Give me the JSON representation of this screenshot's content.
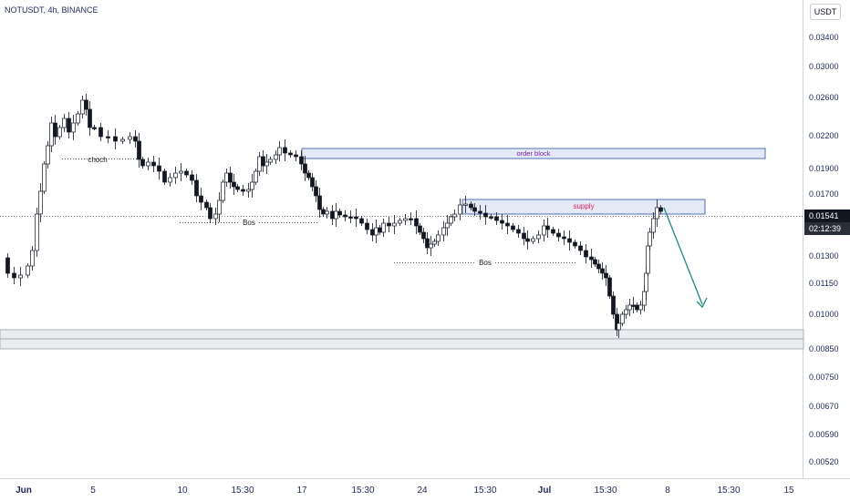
{
  "symbol": {
    "title": "NOTUSDT, 4h, BINANCE"
  },
  "currency": "USDT",
  "current_price": {
    "price": "0.01541",
    "countdown": "02:12:39"
  },
  "y_axis": {
    "ticks": [
      "0.03400",
      "0.03000",
      "0.02600",
      "0.02200",
      "0.01900",
      "0.01700",
      "0.01300",
      "0.01150",
      "0.01000",
      "0.00850",
      "0.00750",
      "0.00670",
      "0.00590",
      "0.00520"
    ]
  },
  "x_axis": {
    "ticks": [
      {
        "label": "Jun",
        "bold": true
      },
      {
        "label": "5",
        "bold": false
      },
      {
        "label": "10",
        "bold": false
      },
      {
        "label": "15:30",
        "bold": false
      },
      {
        "label": "17",
        "bold": false
      },
      {
        "label": "15:30",
        "bold": false
      },
      {
        "label": "24",
        "bold": false
      },
      {
        "label": "15:30",
        "bold": false
      },
      {
        "label": "Jul",
        "bold": true
      },
      {
        "label": "15:30",
        "bold": false
      },
      {
        "label": "8",
        "bold": false
      },
      {
        "label": "15:30",
        "bold": false
      },
      {
        "label": "15",
        "bold": false
      }
    ]
  },
  "annotations": {
    "choch": "choch",
    "bos_1": "Bos",
    "bos_2": "Bos",
    "order_block": "order block",
    "supply": "supply"
  },
  "colors": {
    "up_candle": "#ffffff",
    "down_candle": "#131722",
    "zone_fill": "#e3e9f5",
    "zone_border": "#2a4fa8",
    "order_block_text": "#7b1fa2",
    "supply_text": "#e91e63",
    "arrow": "#1b8a7a",
    "demand_zone": "#d7d9de"
  },
  "chart_data": {
    "type": "candlestick",
    "symbol": "NOTUSDT",
    "interval": "4h",
    "exchange": "BINANCE",
    "key_prices": [
      {
        "x": "Jun 1",
        "y": 0.0125
      },
      {
        "x": "Jun 4",
        "y": 0.029
      },
      {
        "x": "Jun 5",
        "y": 0.0255
      },
      {
        "x": "Jun 7",
        "y": 0.0215
      },
      {
        "x": "Jun 9",
        "y": 0.0185
      },
      {
        "x": "Jun 12",
        "y": 0.0155
      },
      {
        "x": "Jun 16",
        "y": 0.021
      },
      {
        "x": "Jun 18",
        "y": 0.0175
      },
      {
        "x": "Jun 19",
        "y": 0.0155
      },
      {
        "x": "Jun 22",
        "y": 0.0145
      },
      {
        "x": "Jun 24",
        "y": 0.0135
      },
      {
        "x": "Jun 26",
        "y": 0.0165
      },
      {
        "x": "Jun 28",
        "y": 0.0155
      },
      {
        "x": "Jul 1",
        "y": 0.0145
      },
      {
        "x": "Jul 3",
        "y": 0.013
      },
      {
        "x": "Jul 5",
        "y": 0.0095
      },
      {
        "x": "Jul 6",
        "y": 0.0105
      },
      {
        "x": "Jul 7",
        "y": 0.0168
      },
      {
        "x": "Jul 7 20:00",
        "y": 0.01541
      }
    ],
    "zones": [
      {
        "name": "order block",
        "from": "Jun 17",
        "to": "Jul 11",
        "low": 0.0195,
        "high": 0.0205
      },
      {
        "name": "supply",
        "from": "Jun 26",
        "to": "Jul 9",
        "low": 0.0156,
        "high": 0.0166
      }
    ],
    "current_price": 0.01541
  }
}
